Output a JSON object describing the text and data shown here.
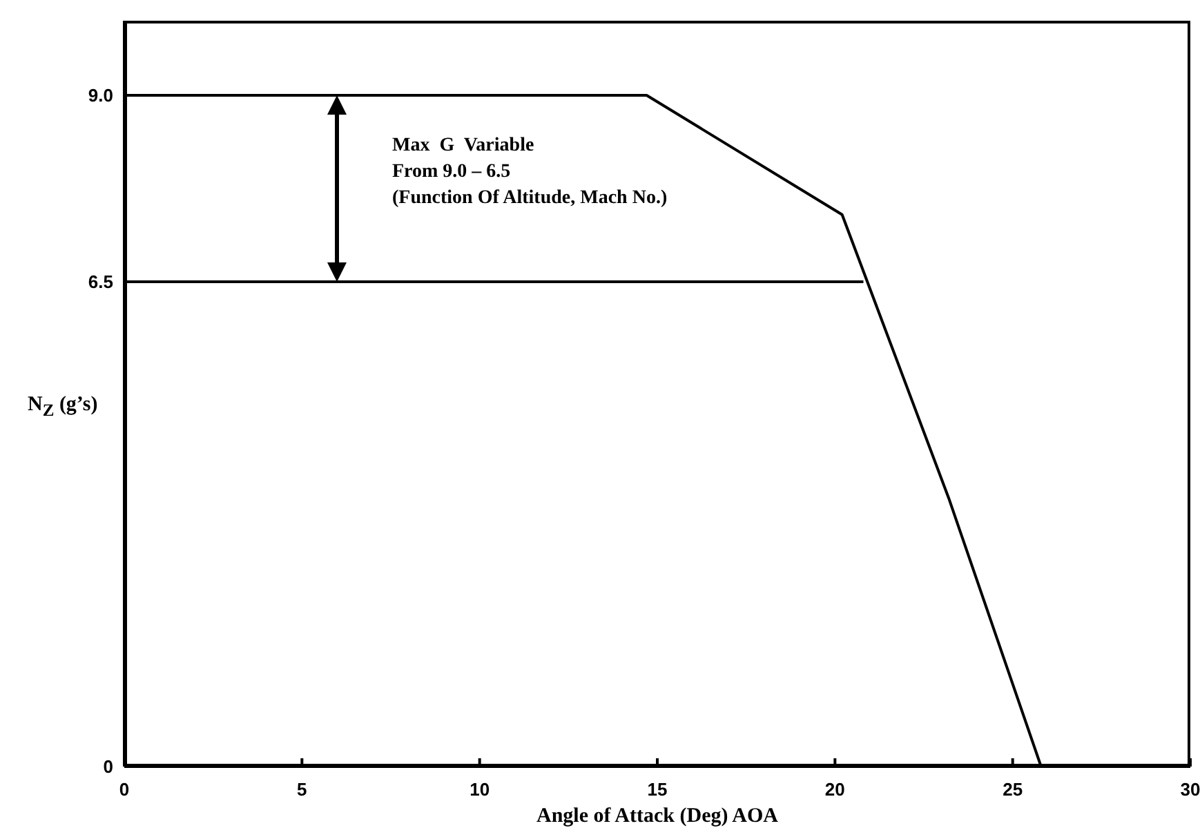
{
  "chart_data": {
    "type": "line",
    "xlabel": "Angle of Attack (Deg) AOA",
    "ylabel": "N$_{Z}$ (g’s)",
    "xlim": [
      0,
      30
    ],
    "xticks": [
      0,
      5,
      10,
      15,
      20,
      25,
      30
    ],
    "ylim": [
      0,
      10
    ],
    "yticks": [
      0,
      6.5,
      {
        "value": 9,
        "label": "9.0"
      }
    ],
    "marker": "none",
    "line_style": "solid",
    "series": [
      {
        "color": "#000000",
        "x": [
          0,
          14.7,
          20.2,
          23.2,
          25.8
        ],
        "values": [
          9,
          9,
          7.4,
          3.6,
          0
        ]
      },
      {
        "color": "#000000",
        "x": [
          0,
          20.8
        ],
        "values": [
          6.5,
          6.5
        ]
      }
    ],
    "annotations": [
      "Max  G  Variable\nFrom 9.0 – 6.5\n(Function Of Altitude, Mach No.)"
    ]
  }
}
